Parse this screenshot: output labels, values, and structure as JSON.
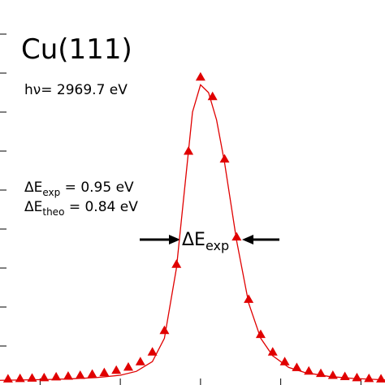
{
  "chart_data": {
    "type": "scatter",
    "title": "Cu(111)",
    "annotations": [
      {
        "main": "hν= 2969.7 eV"
      },
      {
        "main": "ΔE",
        "sub": "exp",
        "rest": " = 0.95 eV"
      },
      {
        "main": "ΔE",
        "sub": "theo",
        "rest": " = 0.84 eV"
      },
      {
        "main": "ΔE",
        "sub": "exp"
      }
    ],
    "xlim": [
      -2.5,
      2.3
    ],
    "ylim": [
      0,
      0.9875
    ],
    "xticks": [
      -2,
      -1,
      0,
      1,
      2
    ],
    "yticks": [
      0.1,
      0.2,
      0.3,
      0.4,
      0.5,
      0.6,
      0.7,
      0.8,
      0.9
    ],
    "series": [
      {
        "kind": "markers",
        "color": "#e00000",
        "x": [
          -2.4,
          -2.25,
          -2.1,
          -1.95,
          -1.8,
          -1.65,
          -1.5,
          -1.35,
          -1.2,
          -1.05,
          -0.9,
          -0.75,
          -0.6,
          -0.45,
          -0.3,
          -0.15,
          0,
          0.15,
          0.3,
          0.45,
          0.6,
          0.75,
          0.9,
          1.05,
          1.2,
          1.35,
          1.5,
          1.65,
          1.8,
          1.95,
          2.1,
          2.25
        ],
        "values": [
          0.016,
          0.017,
          0.018,
          0.019,
          0.021,
          0.023,
          0.025,
          0.028,
          0.032,
          0.038,
          0.046,
          0.06,
          0.085,
          0.14,
          0.31,
          0.6,
          0.79,
          0.74,
          0.58,
          0.38,
          0.22,
          0.13,
          0.085,
          0.06,
          0.045,
          0.036,
          0.03,
          0.025,
          0.022,
          0.019,
          0.017,
          0.016
        ]
      },
      {
        "kind": "line",
        "color": "#e00000",
        "x": [
          -2.5,
          -2.2,
          -1.9,
          -1.6,
          -1.3,
          -1.0,
          -0.8,
          -0.6,
          -0.45,
          -0.3,
          -0.2,
          -0.1,
          0,
          0.1,
          0.2,
          0.3,
          0.45,
          0.6,
          0.75,
          0.9,
          1.1,
          1.3,
          1.6,
          1.9,
          2.2,
          2.3
        ],
        "values": [
          0.012,
          0.013,
          0.014,
          0.016,
          0.019,
          0.025,
          0.035,
          0.06,
          0.12,
          0.3,
          0.5,
          0.7,
          0.77,
          0.75,
          0.68,
          0.57,
          0.37,
          0.21,
          0.12,
          0.075,
          0.045,
          0.032,
          0.022,
          0.017,
          0.014,
          0.013
        ]
      }
    ]
  }
}
